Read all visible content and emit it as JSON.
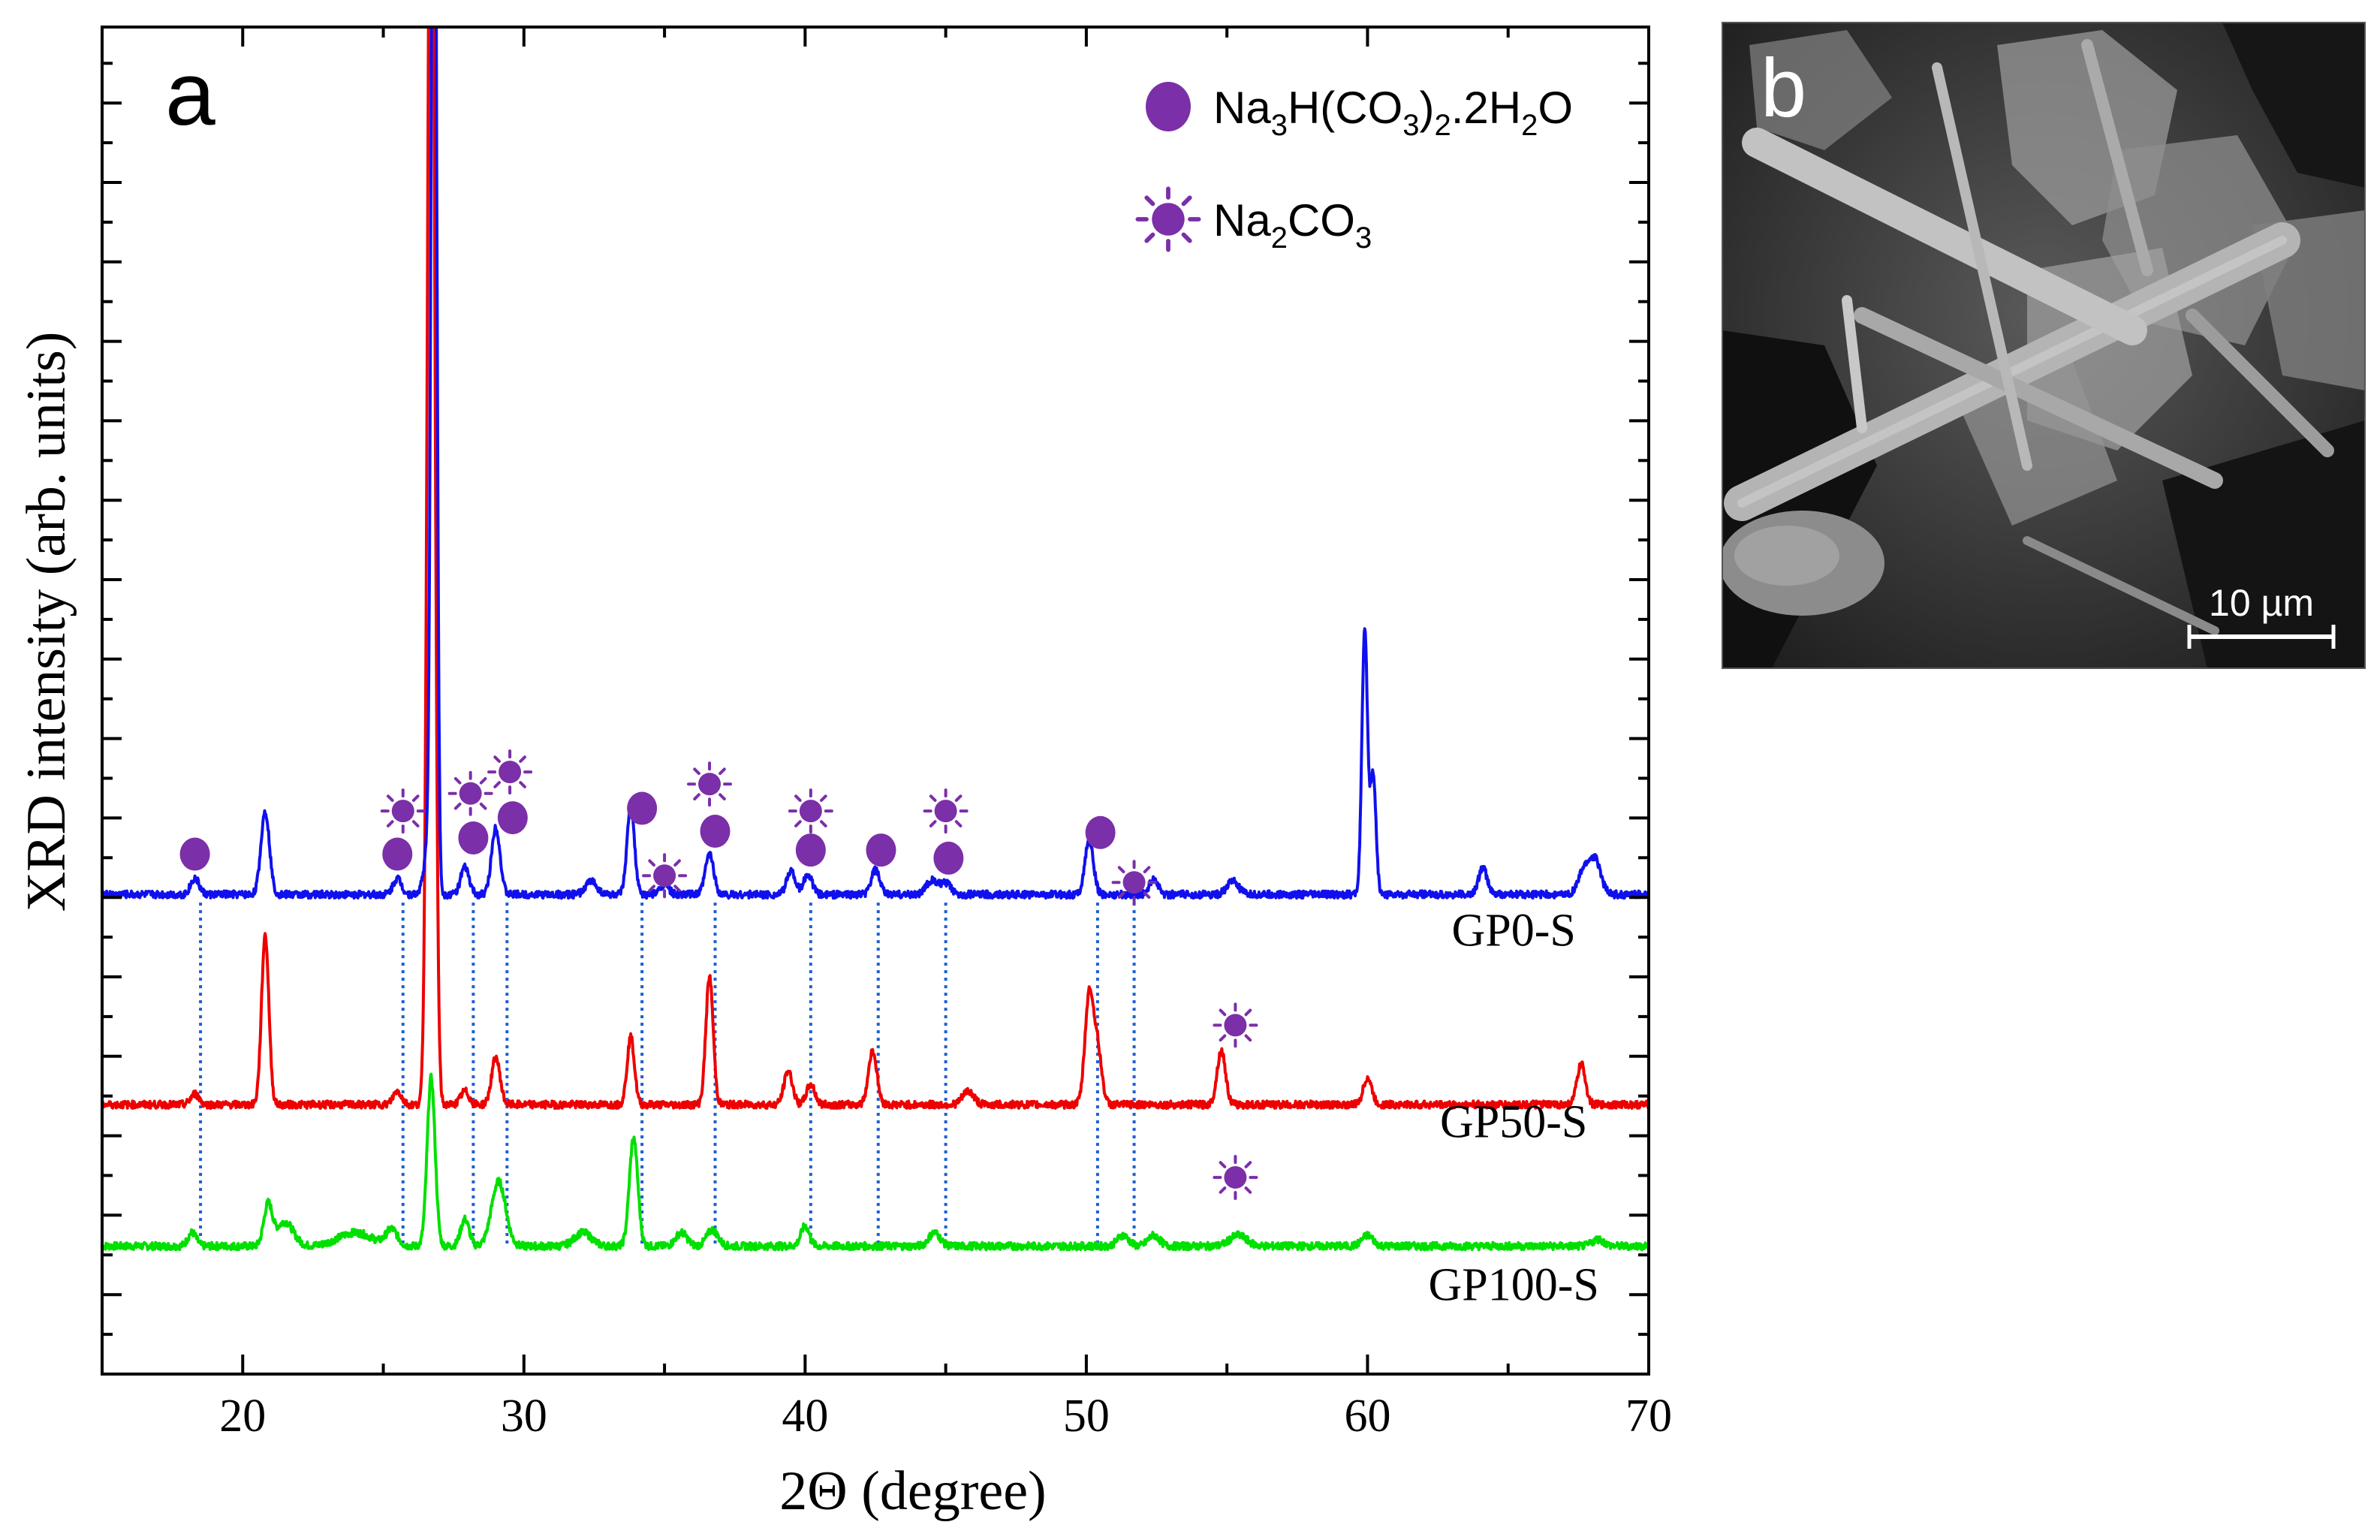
{
  "chart_data": {
    "type": "line",
    "panel_a_label": "a",
    "panel_b_label": "b",
    "xlabel": "2Θ (degree)",
    "ylabel": "XRD intensity (arb. units)",
    "xlim": [
      15,
      70
    ],
    "xticks": [
      20,
      30,
      40,
      50,
      60,
      70
    ],
    "ylim": [
      0,
      100
    ],
    "colors": {
      "GP0-S": "#1010ee",
      "GP50-S": "#ee0000",
      "GP100-S": "#00e000",
      "marker": "#7b2fa8",
      "guide": "#1a5fd0"
    },
    "series": [
      {
        "name": "GP0-S",
        "baseline": 35.6,
        "peaks": [
          [
            18.3,
            1.2,
            0.15
          ],
          [
            20.8,
            6.2,
            0.15
          ],
          [
            25.5,
            1.2,
            0.15
          ],
          [
            26.6,
            3.5,
            0.15
          ],
          [
            26.8,
            100,
            0.09
          ],
          [
            27.9,
            2.0,
            0.15
          ],
          [
            29.0,
            5.0,
            0.15
          ],
          [
            32.4,
            1.0,
            0.2
          ],
          [
            33.8,
            6.6,
            0.13
          ],
          [
            35.0,
            0.8,
            0.15
          ],
          [
            36.6,
            3.0,
            0.15
          ],
          [
            39.5,
            1.8,
            0.15
          ],
          [
            40.1,
            1.5,
            0.15
          ],
          [
            42.5,
            1.8,
            0.15
          ],
          [
            44.5,
            1.0,
            0.2
          ],
          [
            45.0,
            0.8,
            0.2
          ],
          [
            50.1,
            4.0,
            0.15
          ],
          [
            52.4,
            1.2,
            0.15
          ],
          [
            55.2,
            1.0,
            0.2
          ],
          [
            59.9,
            19.5,
            0.1
          ],
          [
            60.2,
            9.0,
            0.1
          ],
          [
            64.1,
            2.0,
            0.15
          ],
          [
            67.7,
            1.8,
            0.2
          ],
          [
            68.1,
            2.5,
            0.2
          ]
        ]
      },
      {
        "name": "GP50-S",
        "baseline": 20.0,
        "peaks": [
          [
            18.3,
            0.8,
            0.15
          ],
          [
            20.8,
            12.6,
            0.13
          ],
          [
            25.5,
            1.0,
            0.15
          ],
          [
            26.7,
            110,
            0.12
          ],
          [
            27.9,
            1.0,
            0.15
          ],
          [
            29.0,
            3.5,
            0.15
          ],
          [
            33.8,
            5.0,
            0.13
          ],
          [
            36.6,
            9.5,
            0.13
          ],
          [
            39.4,
            2.5,
            0.15
          ],
          [
            40.2,
            1.5,
            0.15
          ],
          [
            42.4,
            4.0,
            0.15
          ],
          [
            45.8,
            1.0,
            0.2
          ],
          [
            50.1,
            8.0,
            0.15
          ],
          [
            50.4,
            4.0,
            0.15
          ],
          [
            54.8,
            4.0,
            0.15
          ],
          [
            60.0,
            2.0,
            0.15
          ],
          [
            67.6,
            3.0,
            0.15
          ]
        ]
      },
      {
        "name": "GP100-S",
        "baseline": 9.5,
        "peaks": [
          [
            18.2,
            1.0,
            0.15
          ],
          [
            20.9,
            3.0,
            0.15
          ],
          [
            21.5,
            1.8,
            0.3
          ],
          [
            24.0,
            1.0,
            0.6
          ],
          [
            25.3,
            1.2,
            0.2
          ],
          [
            26.7,
            12.5,
            0.14
          ],
          [
            27.9,
            2.0,
            0.15
          ],
          [
            29.1,
            4.8,
            0.25
          ],
          [
            32.1,
            1.0,
            0.3
          ],
          [
            33.9,
            8.0,
            0.15
          ],
          [
            35.6,
            1.0,
            0.2
          ],
          [
            36.7,
            1.2,
            0.2
          ],
          [
            40.0,
            1.5,
            0.15
          ],
          [
            44.6,
            1.0,
            0.2
          ],
          [
            51.3,
            0.8,
            0.2
          ],
          [
            52.4,
            0.8,
            0.2
          ],
          [
            55.4,
            0.8,
            0.3
          ],
          [
            60.0,
            0.8,
            0.2
          ],
          [
            68.2,
            0.5,
            0.2
          ]
        ]
      }
    ],
    "series_labels": [
      {
        "name": "GP0-S",
        "x": 65.2,
        "y": 31.8
      },
      {
        "name": "GP50-S",
        "x": 65.2,
        "y": 17.6
      },
      {
        "name": "GP100-S",
        "x": 65.2,
        "y": 5.5
      }
    ],
    "reference_lines": [
      18.5,
      25.7,
      28.2,
      29.4,
      34.2,
      36.8,
      40.2,
      42.6,
      45.0,
      50.4,
      51.7
    ],
    "guide_bottom": 9.6,
    "markers": [
      {
        "phase": "Na3H(CO3)2.2H2O",
        "x": 18.3,
        "y": 38.6
      },
      {
        "phase": "Na3H(CO3)2.2H2O",
        "x": 25.5,
        "y": 38.6
      },
      {
        "phase": "Na3H(CO3)2.2H2O",
        "x": 28.2,
        "y": 39.8
      },
      {
        "phase": "Na3H(CO3)2.2H2O",
        "x": 29.6,
        "y": 41.3
      },
      {
        "phase": "Na3H(CO3)2.2H2O",
        "x": 34.2,
        "y": 42.0
      },
      {
        "phase": "Na3H(CO3)2.2H2O",
        "x": 36.8,
        "y": 40.3
      },
      {
        "phase": "Na3H(CO3)2.2H2O",
        "x": 40.2,
        "y": 38.9
      },
      {
        "phase": "Na3H(CO3)2.2H2O",
        "x": 42.7,
        "y": 38.9
      },
      {
        "phase": "Na3H(CO3)2.2H2O",
        "x": 45.1,
        "y": 38.3
      },
      {
        "phase": "Na3H(CO3)2.2H2O",
        "x": 50.5,
        "y": 40.2
      },
      {
        "phase": "Na2CO3",
        "x": 25.7,
        "y": 41.8
      },
      {
        "phase": "Na2CO3",
        "x": 28.1,
        "y": 43.1
      },
      {
        "phase": "Na2CO3",
        "x": 29.5,
        "y": 44.7
      },
      {
        "phase": "Na2CO3",
        "x": 35.0,
        "y": 37.0
      },
      {
        "phase": "Na2CO3",
        "x": 36.6,
        "y": 43.8
      },
      {
        "phase": "Na2CO3",
        "x": 40.2,
        "y": 41.8
      },
      {
        "phase": "Na2CO3",
        "x": 45.0,
        "y": 41.8
      },
      {
        "phase": "Na2CO3",
        "x": 51.7,
        "y": 36.5
      },
      {
        "phase": "Na2CO3",
        "x": 55.3,
        "y": 25.9
      },
      {
        "phase": "Na2CO3",
        "x": 55.3,
        "y": 14.6
      }
    ],
    "legend": [
      {
        "marker": "circle",
        "formula": [
          "Na",
          "3",
          "H(CO",
          "3",
          ")",
          "2",
          ".2H",
          "2",
          "O"
        ]
      },
      {
        "marker": "sun",
        "formula": [
          "Na",
          "2",
          "CO",
          "3"
        ]
      }
    ],
    "legend_position": "top-right",
    "scale_bar_label": "10 µm"
  }
}
